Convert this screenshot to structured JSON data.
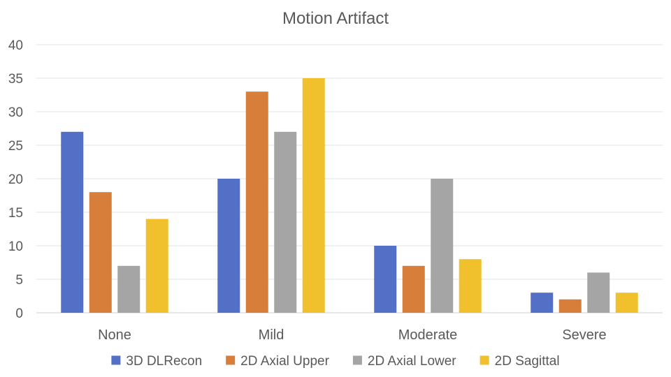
{
  "chart_data": {
    "type": "bar",
    "title": "Motion Artifact",
    "xlabel": "",
    "ylabel": "",
    "categories": [
      "None",
      "Mild",
      "Moderate",
      "Severe"
    ],
    "series": [
      {
        "name": "3D DLRecon",
        "color": "#5470c6",
        "values": [
          27,
          20,
          10,
          3
        ]
      },
      {
        "name": "2D Axial Upper",
        "color": "#d67e3a",
        "values": [
          18,
          33,
          7,
          2
        ]
      },
      {
        "name": "2D Axial Lower",
        "color": "#a5a5a5",
        "values": [
          7,
          27,
          20,
          6
        ]
      },
      {
        "name": "2D Sagittal",
        "color": "#f0c02d",
        "values": [
          14,
          35,
          8,
          3
        ]
      }
    ],
    "ylim": [
      0,
      40
    ],
    "yticks": [
      0,
      5,
      10,
      15,
      20,
      25,
      30,
      35,
      40
    ],
    "grid": true,
    "legend": "bottom"
  }
}
